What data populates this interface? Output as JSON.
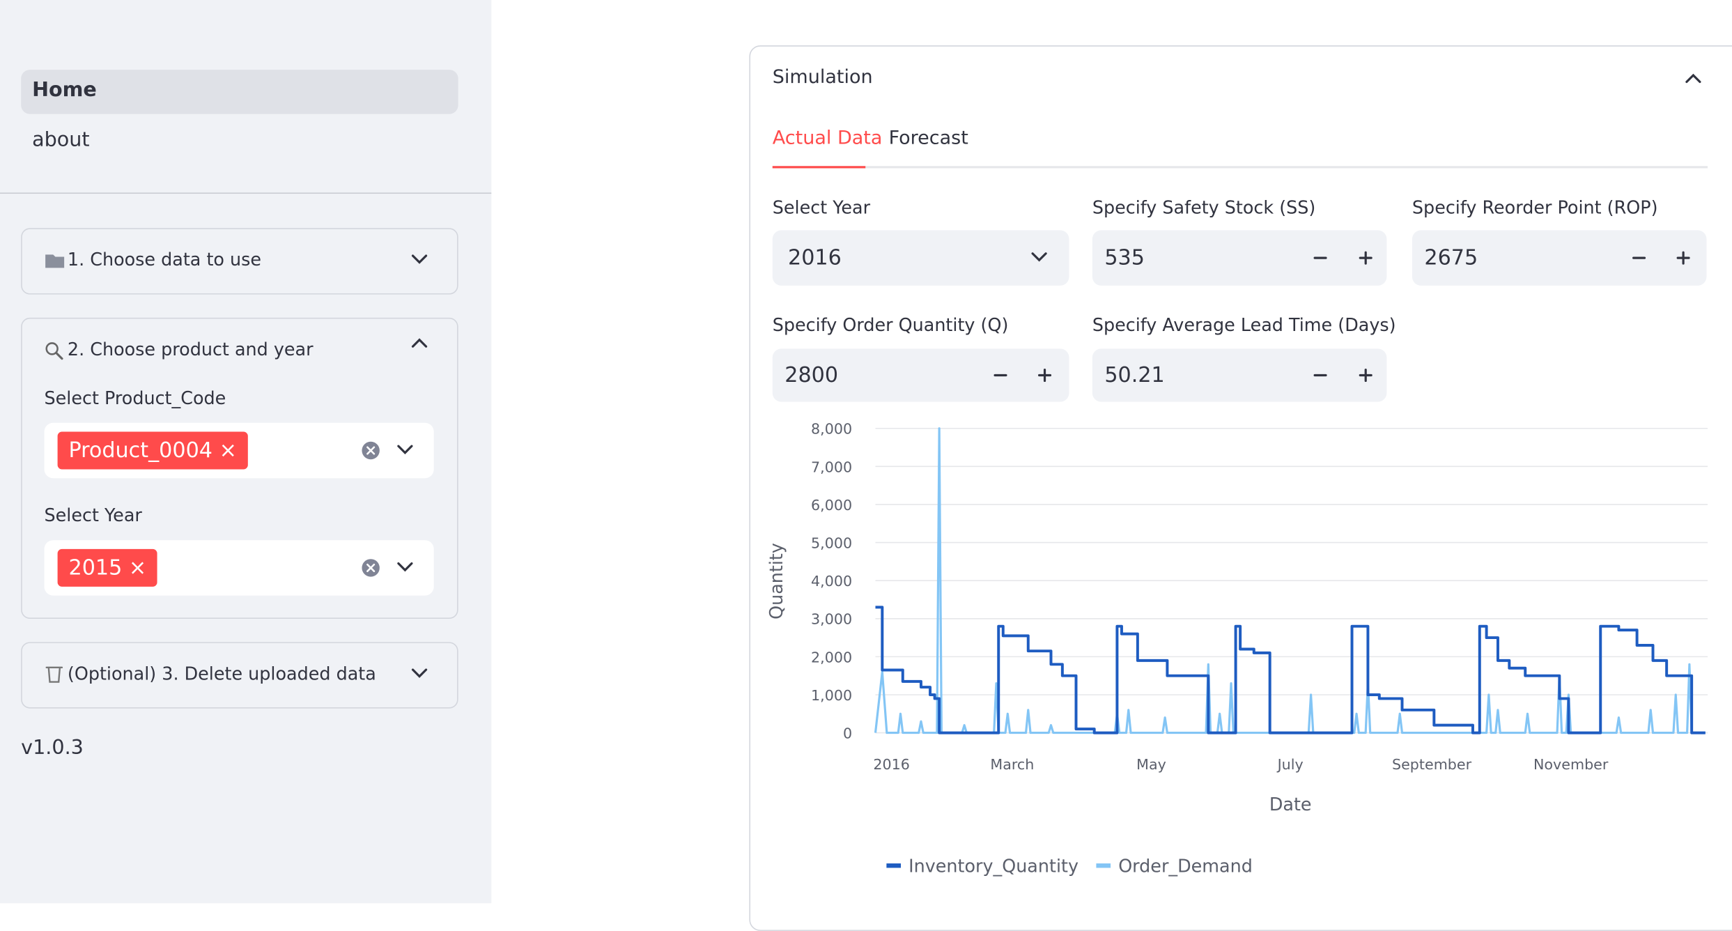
{
  "sidebar": {
    "nav": [
      "Home",
      "about"
    ],
    "expanders": [
      {
        "title": "1. Choose data to use"
      },
      {
        "title": "2. Choose product and year",
        "fields": [
          {
            "label": "Select Product_Code",
            "tag": "Product_0004"
          },
          {
            "label": "Select Year",
            "tag": "2015"
          }
        ]
      },
      {
        "title": "(Optional) 3. Delete uploaded data"
      }
    ],
    "version": "v1.0.3"
  },
  "panel": {
    "title": "Simulation",
    "tabs": [
      "Actual Data",
      "Forecast"
    ],
    "inputs": [
      {
        "label": "Select Year",
        "value": "2016"
      },
      {
        "label": "Specify Safety Stock (SS)",
        "value": 535
      },
      {
        "label": "Specify Reorder Point (ROP)",
        "value": 2675
      },
      {
        "label": "Specify Order Quantity (Q)",
        "value": 2800
      },
      {
        "label": "Specify Average Lead Time (Days)",
        "value": 50.21
      }
    ]
  },
  "chart_data": {
    "type": "line",
    "xlabel": "Date",
    "ylabel": "Quantity",
    "grid": true,
    "legend": "bottom",
    "xlim": [
      0,
      365
    ],
    "xticks": [
      {
        "value": 0,
        "label": "2016"
      },
      {
        "value": 60,
        "label": "March"
      },
      {
        "value": 121,
        "label": "May"
      },
      {
        "value": 182,
        "label": "July"
      },
      {
        "value": 244,
        "label": "September"
      },
      {
        "value": 305,
        "label": "November"
      }
    ],
    "ylim": [
      0,
      8000
    ],
    "yticks": [
      0,
      {
        "value": 1000,
        "label": "1,000"
      },
      {
        "value": 2000,
        "label": "2,000"
      },
      {
        "value": 3000,
        "label": "3,000"
      },
      {
        "value": 4000,
        "label": "4,000"
      },
      {
        "value": 5000,
        "label": "5,000"
      },
      {
        "value": 6000,
        "label": "6,000"
      },
      {
        "value": 7000,
        "label": "7,000"
      },
      {
        "value": 8000,
        "label": "8,000"
      }
    ],
    "series": [
      {
        "name": "Inventory_Quantity",
        "color": "#1e5cc1",
        "interpolate": "step-after",
        "x": [
          0,
          3,
          12,
          20,
          24,
          26,
          28,
          54,
          56,
          67,
          77,
          82,
          88,
          96,
          106,
          108,
          115,
          128,
          146,
          158,
          160,
          166,
          173,
          209,
          216,
          221,
          231,
          245,
          262,
          265,
          268,
          273,
          278,
          285,
          300,
          304,
          318,
          326,
          334,
          341,
          347,
          358,
          364
        ],
        "values": [
          3300,
          1650,
          1350,
          1200,
          1000,
          900,
          0,
          2800,
          2550,
          2150,
          1800,
          1500,
          100,
          0,
          2800,
          2600,
          1900,
          1500,
          0,
          2800,
          2200,
          2100,
          0,
          2800,
          1000,
          900,
          600,
          200,
          0,
          2800,
          2500,
          1900,
          1700,
          1500,
          900,
          0,
          2800,
          2700,
          2300,
          1900,
          1500,
          0,
          0
        ]
      },
      {
        "name": "Order_Demand",
        "color": "#83c5f5",
        "interpolate": "linear",
        "x": [
          0,
          3,
          5,
          10,
          11,
          12,
          19,
          20,
          21,
          27,
          28,
          29,
          38,
          39,
          40,
          52,
          53,
          54,
          57,
          58,
          59,
          66,
          67,
          68,
          76,
          77,
          78,
          105,
          106,
          107,
          110,
          111,
          112,
          126,
          127,
          128,
          145,
          146,
          147,
          150,
          151,
          152,
          155,
          156,
          157,
          190,
          191,
          192,
          210,
          211,
          212,
          215,
          216,
          217,
          229,
          230,
          231,
          268,
          269,
          270,
          272,
          273,
          274,
          285,
          286,
          287,
          299,
          300,
          301,
          303,
          304,
          305,
          325,
          326,
          327,
          339,
          340,
          341,
          350,
          351,
          352,
          356,
          357,
          358,
          364
        ],
        "values": [
          0,
          1600,
          0,
          0,
          500,
          0,
          0,
          300,
          0,
          0,
          8000,
          0,
          0,
          200,
          0,
          0,
          1300,
          0,
          0,
          500,
          0,
          0,
          600,
          0,
          0,
          200,
          0,
          0,
          500,
          0,
          0,
          600,
          0,
          0,
          400,
          0,
          0,
          1800,
          0,
          0,
          500,
          0,
          0,
          1300,
          0,
          0,
          1000,
          0,
          0,
          500,
          0,
          0,
          1300,
          0,
          0,
          500,
          0,
          0,
          1000,
          0,
          0,
          600,
          0,
          0,
          500,
          0,
          0,
          1500,
          0,
          0,
          1000,
          0,
          0,
          400,
          0,
          0,
          600,
          0,
          0,
          1000,
          0,
          0,
          1800,
          0,
          0
        ]
      }
    ]
  }
}
